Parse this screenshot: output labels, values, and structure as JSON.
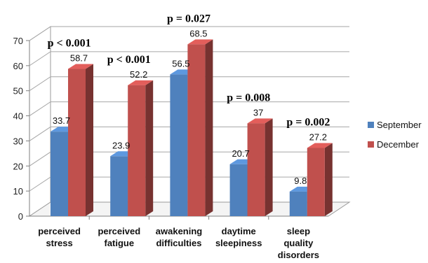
{
  "chart_data": {
    "type": "bar",
    "style": "3d-clustered-column",
    "categories": [
      [
        "perceived",
        "stress"
      ],
      [
        "perceived",
        "fatigue"
      ],
      [
        "awakening",
        "difficulties"
      ],
      [
        "daytime",
        "sleepiness"
      ],
      [
        "sleep",
        "quality",
        "disorders"
      ]
    ],
    "series": [
      {
        "name": "September",
        "color": "#4f81bd",
        "values": [
          33.7,
          23.9,
          56.5,
          20.7,
          9.8
        ]
      },
      {
        "name": "December",
        "color": "#c0504d",
        "values": [
          58.7,
          52.2,
          68.5,
          37,
          27.2
        ]
      }
    ],
    "value_labels": [
      [
        "33.7",
        "23.9",
        "56.5",
        "20.7",
        "9.8"
      ],
      [
        "58.7",
        "52.2",
        "68.5",
        "37",
        "27.2"
      ]
    ],
    "annotations": [
      "p < 0.001",
      "p < 0.001",
      "p = 0.027",
      "p = 0.008",
      "p = 0.002"
    ],
    "ylim": [
      0,
      70
    ],
    "yticks": [
      0,
      10,
      20,
      30,
      40,
      50,
      60,
      70
    ],
    "grid": true,
    "legend": "right",
    "title": "",
    "xlabel": "",
    "ylabel": ""
  }
}
